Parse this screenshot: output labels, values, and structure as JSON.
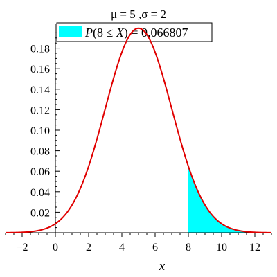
{
  "chart_data": {
    "type": "area",
    "title": "μ = 5 ,σ = 2",
    "xlabel": "x",
    "ylabel": "",
    "mu": 5,
    "sigma": 2,
    "xlim": [
      -3,
      13
    ],
    "ylim": [
      0,
      0.2
    ],
    "x_ticks": [
      -2,
      0,
      2,
      4,
      6,
      8,
      10,
      12
    ],
    "x_tick_labels": [
      "−2",
      "0",
      "2",
      "4",
      "6",
      "8",
      "10",
      "12"
    ],
    "y_ticks": [
      0.02,
      0.04,
      0.06,
      0.08,
      0.1,
      0.12,
      0.14,
      0.16,
      0.18
    ],
    "y_tick_labels": [
      "0.02",
      "0.04",
      "0.06",
      "0.08",
      "0.10",
      "0.12",
      "0.14",
      "0.16",
      "0.18"
    ],
    "shaded_region": {
      "from": 8,
      "to": 13
    },
    "legend": {
      "placement": "top",
      "lhs": "P",
      "open": "(8 ≤ ",
      "var": "X",
      "close": ")",
      "rhs": " = 0.066807"
    },
    "colors": {
      "curve": "#e00000",
      "fill": "#00ffff",
      "axis": "#000000"
    }
  }
}
